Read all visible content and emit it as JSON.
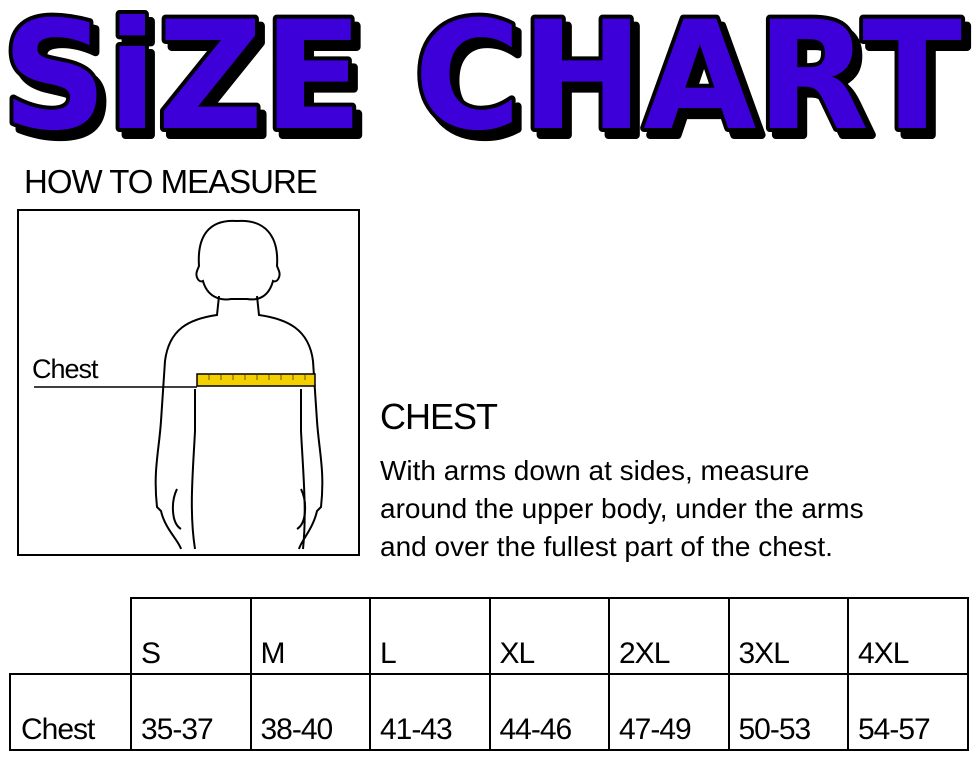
{
  "title": "SiZE CHART",
  "title_colors": {
    "fill": "#3d00d8",
    "outline": "#000000"
  },
  "how_to_measure": "HOW TO MEASURE",
  "figure": {
    "chest_label": "Chest",
    "tape_color": "#f5d000"
  },
  "section": {
    "title": "CHEST",
    "description_lines": [
      "With arms down at sides, measure",
      "around the upper body, under the arms",
      "and over the fullest part of the chest."
    ]
  },
  "table": {
    "sizes": [
      "S",
      "M",
      "L",
      "XL",
      "2XL",
      "3XL",
      "4XL"
    ],
    "rows": [
      {
        "label": "Chest",
        "values": [
          "35-37",
          "38-40",
          "41-43",
          "44-46",
          "47-49",
          "50-53",
          "54-57"
        ]
      }
    ]
  }
}
